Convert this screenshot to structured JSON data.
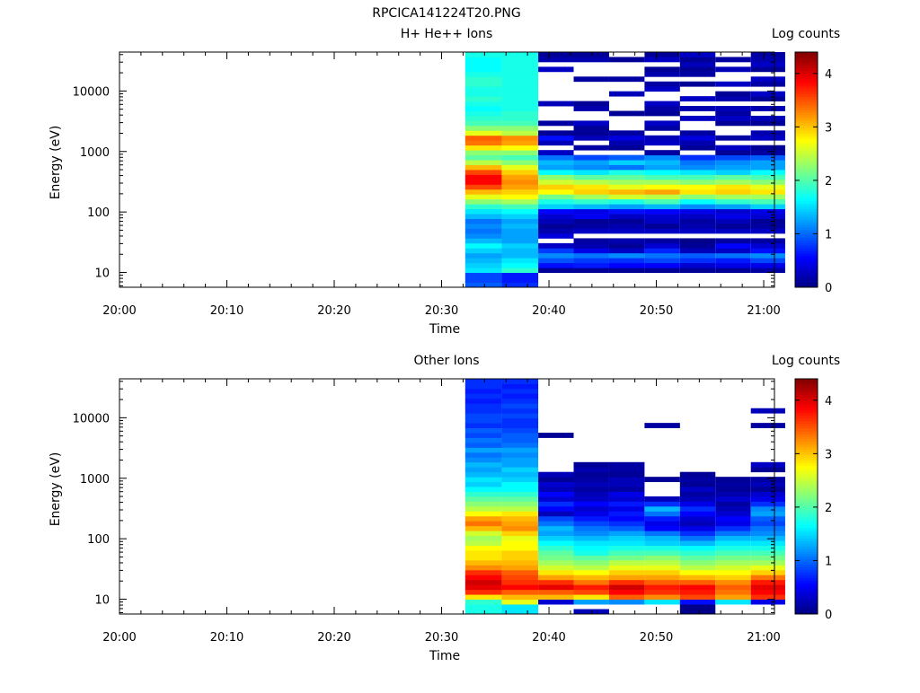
{
  "figure_title": "RPCICA141224T20.PNG",
  "colorbar_ticks": [
    "0",
    "1",
    "2",
    "3",
    "4"
  ],
  "chart_data": [
    {
      "type": "heatmap",
      "title": "H+ He++ Ions",
      "xlabel": "Time",
      "ylabel": "Energy (eV)",
      "colorbar_label": "Log counts",
      "colorbar_range": [
        0,
        4.4
      ],
      "colormap": "jet",
      "log_y": true,
      "xlim": [
        "20:00",
        "21:01"
      ],
      "ylim": [
        5.7,
        44000
      ],
      "x_ticks": [
        "20:00",
        "20:10",
        "20:20",
        "20:30",
        "20:40",
        "20:50",
        "21:00"
      ],
      "y_ticks": [
        "10",
        "100",
        "1000",
        "10000"
      ],
      "time_bins": [
        {
          "start": "20:32.2",
          "end": "20:35.6",
          "values": [
            0.95,
            0.85,
            0.85,
            1.55,
            1.45,
            1.35,
            1.25,
            1.45,
            1.65,
            1.35,
            1.15,
            1.05,
            1.15,
            1.05,
            1.35,
            1.55,
            1.85,
            2.25,
            2.65,
            3.05,
            3.55,
            3.85,
            3.85,
            3.55,
            3.05,
            2.45,
            2.05,
            2.25,
            2.85,
            3.35,
            3.45,
            2.65,
            2.25,
            1.95,
            1.85,
            1.75,
            1.65,
            1.75,
            1.85,
            1.75,
            1.75,
            1.85,
            1.85,
            1.75,
            1.65,
            1.65,
            1.65,
            1.75
          ]
        },
        {
          "start": "20:35.6",
          "end": "20:39",
          "values": [
            0.75,
            0.65,
            0.65,
            1.85,
            1.65,
            1.55,
            1.35,
            1.35,
            1.45,
            1.25,
            1.25,
            1.25,
            1.35,
            1.25,
            1.45,
            1.65,
            1.95,
            2.35,
            2.75,
            2.95,
            3.15,
            3.25,
            3.15,
            2.95,
            2.65,
            2.25,
            1.95,
            2.25,
            2.75,
            3.15,
            3.25,
            2.45,
            2.25,
            1.95,
            1.85,
            1.85,
            1.75,
            1.75,
            1.75,
            1.75,
            1.75,
            1.75,
            1.75,
            1.75,
            1.75,
            1.75,
            1.75,
            1.75
          ]
        },
        {
          "start": "20:39",
          "end": "20:42.3",
          "values": [
            null,
            null,
            null,
            0.1,
            0.6,
            0.9,
            1.15,
            0.8,
            0.3,
            null,
            0.4,
            0.2,
            0.1,
            0.25,
            0.35,
            0.55,
            1.45,
            1.75,
            2.15,
            2.75,
            2.95,
            2.55,
            2.25,
            1.65,
            1.25,
            1.35,
            1.05,
            0.3,
            null,
            0.25,
            0.6,
            0.1,
            null,
            0.15,
            null,
            null,
            null,
            0.25,
            null,
            null,
            null,
            null,
            null,
            null,
            0.3,
            null,
            0.2,
            0.1
          ]
        },
        {
          "start": "20:42.3",
          "end": "20:45.6",
          "values": [
            null,
            null,
            null,
            0.1,
            0.65,
            0.8,
            1.05,
            0.45,
            0.2,
            0.15,
            null,
            0.3,
            0.15,
            0.1,
            0.5,
            0.45,
            1.35,
            1.85,
            2.35,
            2.95,
            2.85,
            2.45,
            2.05,
            1.55,
            1.15,
            1.25,
            0.85,
            null,
            0.15,
            null,
            0.25,
            0.1,
            0.1,
            0.3,
            null,
            null,
            0.2,
            0.1,
            null,
            null,
            null,
            null,
            0.15,
            null,
            null,
            null,
            0.2,
            0.1
          ]
        },
        {
          "start": "20:45.6",
          "end": "20:48.9",
          "values": [
            null,
            null,
            null,
            0.1,
            0.55,
            0.75,
            1.15,
            0.3,
            0.1,
            0.2,
            null,
            0.3,
            0.2,
            0.1,
            0.3,
            0.6,
            1.25,
            1.75,
            2.55,
            3.05,
            2.65,
            2.35,
            2.05,
            1.75,
            1.05,
            1.45,
            0.95,
            null,
            0.1,
            0.2,
            0.4,
            0.15,
            null,
            null,
            null,
            0.1,
            null,
            null,
            null,
            0.25,
            null,
            null,
            0.15,
            null,
            null,
            null,
            0.1,
            null
          ]
        },
        {
          "start": "20:48.9",
          "end": "20:52.2",
          "values": [
            null,
            null,
            null,
            0.1,
            0.55,
            0.85,
            1.05,
            0.7,
            0.35,
            0.15,
            null,
            0.3,
            0.1,
            0.3,
            0.35,
            0.55,
            1.35,
            1.95,
            2.45,
            3.15,
            2.75,
            2.35,
            1.95,
            1.65,
            1.25,
            1.35,
            1.15,
            0.15,
            null,
            0.3,
            0.25,
            null,
            0.15,
            0.3,
            null,
            0.1,
            0.15,
            0.3,
            null,
            null,
            0.3,
            0.15,
            null,
            0.2,
            0.1,
            null,
            0.3,
            0.1
          ]
        },
        {
          "start": "20:52.2",
          "end": "20:55.5",
          "values": [
            null,
            null,
            null,
            0.1,
            0.35,
            0.75,
            0.95,
            0.25,
            0.1,
            0.05,
            null,
            0.3,
            0.2,
            0.15,
            0.3,
            0.45,
            1.15,
            1.65,
            2.25,
            2.85,
            2.75,
            2.25,
            1.95,
            1.55,
            1.15,
            1.05,
            0.75,
            null,
            0.1,
            0.2,
            0.4,
            0.15,
            null,
            null,
            0.3,
            null,
            0.2,
            null,
            0.3,
            null,
            null,
            0.1,
            null,
            0.15,
            0.1,
            0.25,
            0.1,
            0.3
          ]
        },
        {
          "start": "20:55.5",
          "end": "20:58.8",
          "values": [
            null,
            null,
            null,
            0.1,
            0.45,
            0.65,
            1.05,
            0.3,
            0.55,
            0.15,
            null,
            0.3,
            0.1,
            0.25,
            0.45,
            0.35,
            1.25,
            1.85,
            2.35,
            2.95,
            2.85,
            2.35,
            2.05,
            1.45,
            1.25,
            1.15,
            0.85,
            0.1,
            0.3,
            null,
            0.15,
            null,
            null,
            0.1,
            0.3,
            0.15,
            0.25,
            null,
            0.2,
            0.1,
            null,
            0.3,
            null,
            null,
            0.25,
            null,
            0.15,
            null
          ]
        },
        {
          "start": "20:58.8",
          "end": "21:02",
          "values": [
            null,
            null,
            null,
            0.15,
            0.45,
            0.85,
            1.15,
            0.6,
            0.35,
            0.15,
            null,
            0.3,
            0.15,
            0.1,
            0.35,
            0.45,
            1.45,
            1.95,
            2.35,
            2.85,
            2.65,
            2.25,
            1.95,
            1.65,
            1.25,
            1.25,
            0.95,
            0.15,
            0.1,
            null,
            0.3,
            0.2,
            null,
            0.1,
            0.25,
            null,
            0.2,
            null,
            0.1,
            0.3,
            null,
            0.15,
            0.3,
            null,
            0.1,
            0.3,
            0.2,
            0.15
          ]
        }
      ]
    },
    {
      "type": "heatmap",
      "title": "Other Ions",
      "xlabel": "Time",
      "ylabel": "Energy (eV)",
      "colorbar_label": "Log counts",
      "colorbar_range": [
        0,
        4.4
      ],
      "colormap": "jet",
      "log_y": true,
      "xlim": [
        "20:00",
        "21:01"
      ],
      "ylim": [
        5.7,
        44000
      ],
      "x_ticks": [
        "20:00",
        "20:10",
        "20:20",
        "20:30",
        "20:40",
        "20:50",
        "21:00"
      ],
      "y_ticks": [
        "10",
        "100",
        "1000",
        "10000"
      ],
      "time_bins": [
        {
          "start": "20:32.2",
          "end": "20:35.6",
          "values": [
            1.75,
            1.75,
            1.85,
            2.85,
            3.65,
            3.95,
            4.05,
            3.85,
            3.65,
            3.25,
            3.05,
            2.85,
            2.85,
            2.75,
            2.45,
            2.35,
            2.55,
            3.05,
            3.35,
            3.15,
            2.75,
            2.45,
            2.25,
            2.05,
            1.85,
            1.65,
            1.45,
            1.55,
            1.35,
            1.25,
            1.35,
            1.15,
            1.05,
            1.25,
            0.95,
            1.05,
            0.85,
            0.95,
            0.75,
            0.85,
            0.85,
            0.75,
            0.75,
            0.65,
            0.75,
            0.65,
            0.75,
            0.75
          ]
        },
        {
          "start": "20:35.6",
          "end": "20:39",
          "values": [
            1.55,
            1.55,
            2.65,
            3.05,
            3.45,
            3.85,
            3.65,
            3.55,
            3.45,
            3.15,
            3.05,
            2.95,
            2.95,
            2.75,
            2.75,
            2.65,
            2.95,
            3.25,
            3.15,
            3.05,
            2.85,
            2.45,
            2.25,
            2.05,
            1.85,
            1.65,
            1.65,
            1.45,
            1.35,
            1.45,
            1.25,
            1.25,
            1.15,
            1.25,
            1.05,
            0.95,
            0.95,
            0.85,
            0.75,
            0.75,
            0.85,
            0.75,
            0.85,
            0.75,
            0.65,
            0.75,
            0.65,
            0.75
          ]
        },
        {
          "start": "20:39",
          "end": "20:42.3",
          "values": [
            null,
            null,
            0.35,
            3.05,
            3.45,
            3.95,
            3.65,
            3.15,
            2.85,
            2.55,
            2.35,
            2.15,
            2.05,
            1.85,
            1.65,
            1.45,
            1.25,
            1.35,
            1.05,
            0.85,
            0.25,
            0.55,
            0.75,
            0.35,
            0.55,
            0.25,
            0.35,
            0.1,
            0.25,
            null,
            null,
            null,
            null,
            null,
            null,
            null,
            0.1,
            null,
            null,
            null,
            null,
            null,
            null,
            null,
            null,
            null,
            null,
            null
          ]
        },
        {
          "start": "20:42.3",
          "end": "20:45.6",
          "values": [
            0.25,
            null,
            1.25,
            2.85,
            3.55,
            3.75,
            3.35,
            3.05,
            2.75,
            2.45,
            2.25,
            2.05,
            1.75,
            1.65,
            1.55,
            1.35,
            1.15,
            1.05,
            0.85,
            0.65,
            0.45,
            0.35,
            0.55,
            0.3,
            0.25,
            0.15,
            0.25,
            0.15,
            0.1,
            0.2,
            0.1,
            null,
            null,
            null,
            null,
            null,
            null,
            null,
            null,
            null,
            null,
            null,
            null,
            null,
            null,
            null,
            null,
            null
          ]
        },
        {
          "start": "20:45.6",
          "end": "20:48.9",
          "values": [
            null,
            null,
            1.15,
            3.45,
            3.85,
            4.05,
            3.65,
            3.15,
            2.95,
            2.65,
            2.45,
            2.15,
            1.95,
            1.75,
            1.55,
            1.45,
            1.25,
            0.95,
            0.75,
            0.55,
            0.65,
            0.45,
            0.65,
            0.35,
            0.45,
            0.15,
            0.25,
            0.25,
            0.1,
            0.15,
            0.15,
            null,
            null,
            null,
            null,
            null,
            null,
            null,
            null,
            null,
            null,
            null,
            null,
            null,
            null,
            null,
            null,
            null
          ]
        },
        {
          "start": "20:48.9",
          "end": "20:52.2",
          "values": [
            null,
            null,
            1.55,
            3.25,
            3.65,
            3.75,
            3.45,
            3.15,
            2.95,
            2.65,
            2.45,
            2.25,
            1.95,
            1.75,
            1.45,
            1.35,
            1.05,
            0.55,
            0.45,
            0.65,
            1.05,
            1.35,
            0.75,
            0.25,
            null,
            null,
            null,
            0.1,
            null,
            null,
            null,
            null,
            null,
            null,
            null,
            null,
            null,
            null,
            0.15,
            null,
            null,
            null,
            null,
            null,
            null,
            null,
            null,
            null
          ]
        },
        {
          "start": "20:52.2",
          "end": "20:55.5",
          "values": [
            0.05,
            0.05,
            0.6,
            3.55,
            3.75,
            3.85,
            3.45,
            3.05,
            2.75,
            2.45,
            2.25,
            2.05,
            1.85,
            1.65,
            1.35,
            1.05,
            0.75,
            0.45,
            0.25,
            0.35,
            0.55,
            0.75,
            0.45,
            0.25,
            0.15,
            0.3,
            0.1,
            0.15,
            0.1,
            null,
            null,
            null,
            null,
            null,
            null,
            null,
            null,
            null,
            null,
            null,
            null,
            null,
            null,
            null,
            null,
            null,
            null,
            null
          ]
        },
        {
          "start": "20:55.5",
          "end": "20:58.8",
          "values": [
            null,
            null,
            1.55,
            3.15,
            3.35,
            3.45,
            3.25,
            2.95,
            2.75,
            2.55,
            2.35,
            2.15,
            1.95,
            1.75,
            1.55,
            1.35,
            1.05,
            0.75,
            0.45,
            0.55,
            0.35,
            0.25,
            0.15,
            0.35,
            0.2,
            0.1,
            0.15,
            0.1,
            null,
            null,
            null,
            null,
            null,
            null,
            null,
            null,
            null,
            null,
            null,
            null,
            null,
            null,
            null,
            null,
            null,
            null,
            null,
            null
          ]
        },
        {
          "start": "20:58.8",
          "end": "21:02",
          "values": [
            null,
            null,
            0.45,
            3.65,
            3.85,
            3.95,
            3.75,
            3.35,
            2.95,
            2.65,
            2.35,
            2.15,
            1.95,
            1.75,
            1.55,
            1.35,
            1.15,
            1.05,
            0.85,
            0.95,
            1.25,
            1.15,
            0.75,
            0.45,
            0.35,
            0.1,
            0.25,
            0.15,
            null,
            0.1,
            0.3,
            null,
            null,
            null,
            null,
            null,
            null,
            null,
            0.15,
            null,
            null,
            0.25,
            null,
            null,
            null,
            null,
            null,
            null
          ]
        }
      ]
    }
  ]
}
